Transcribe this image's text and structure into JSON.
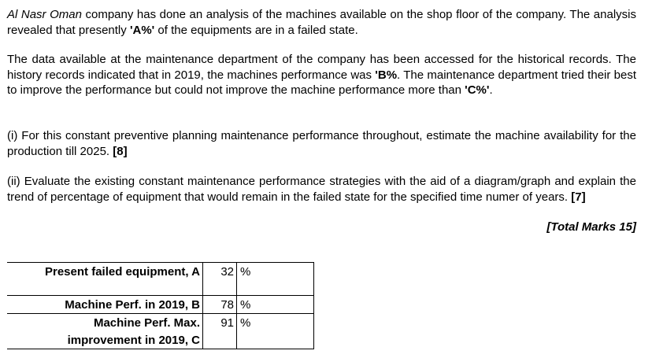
{
  "p1": {
    "company": "Al Nasr Oman",
    "rest1": " company has done an analysis of the machines available on the shop floor of the company. The analysis revealed that presently ",
    "varA": "'A%'",
    "rest2": " of the equipments are in a failed state."
  },
  "p2": {
    "text1": "The data available at the maintenance department of the company has been accessed for the historical records. The history records indicated that in 2019, the machines performance was ",
    "varB": "'B%",
    "text2": ". The maintenance department tried their best to improve the performance but could not improve the machine performance more than ",
    "varC": "'C%'",
    "text3": "."
  },
  "p3": {
    "text": "(i) For this constant preventive planning maintenance performance throughout, estimate the machine availability for the production till 2025. ",
    "marks": "[8]"
  },
  "p4": {
    "text": "(ii) Evaluate the existing constant maintenance performance strategies with the aid of a diagram/graph and explain the trend of percentage of equipment that would remain in the failed state for the specified time numer of years. ",
    "marks": "[7]"
  },
  "total": "[Total Marks 15]",
  "table": {
    "rows": [
      {
        "label": "Present failed equipment, A",
        "value": "32",
        "unit": "%"
      },
      {
        "label": "Machine Perf. in 2019, B",
        "value": "78",
        "unit": "%"
      },
      {
        "label_line1": "Machine Perf. Max.",
        "label_line2": "improvement in 2019, C",
        "value": "91",
        "unit": "%"
      }
    ]
  }
}
